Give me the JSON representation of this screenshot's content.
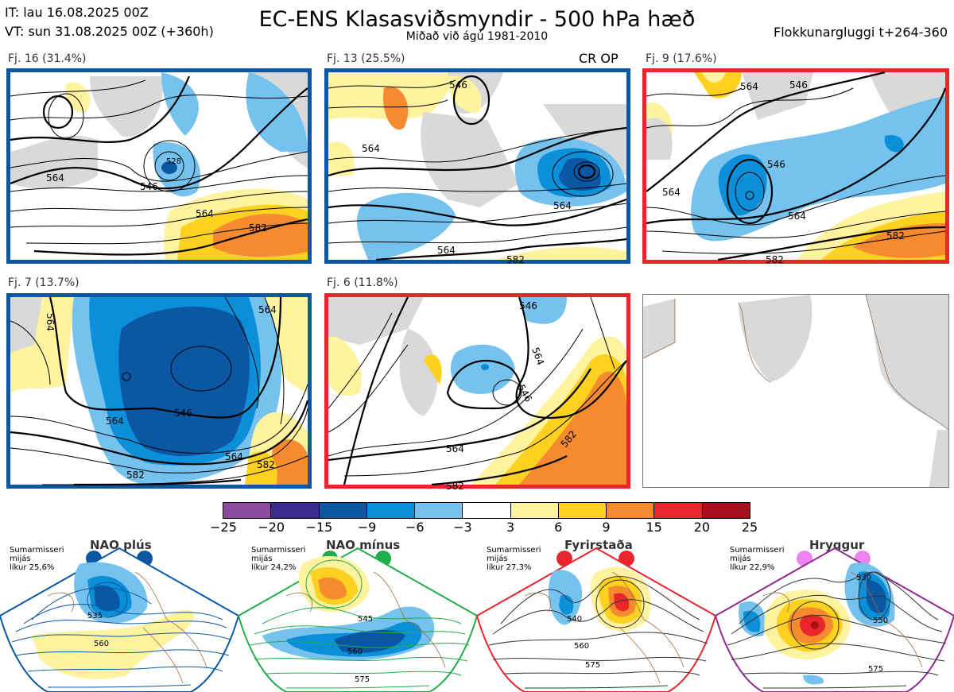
{
  "header": {
    "it_line": "IT: lau 16.08.2025 00Z",
    "vt_line": "VT: sun 31.08.2025 00Z  (+360h)",
    "title": "EC-ENS Klasasviðsmyndir - 500 hPa hæð",
    "subtitle": "Miðað við ágú 1981-2010",
    "window": "Flokkunargluggi t+264-360"
  },
  "panels": [
    {
      "label": "Fj. 16 (31.4%)",
      "border_color": "#0b57a4",
      "tag": "",
      "contours": [
        "564",
        "546",
        "528",
        "564",
        "582"
      ]
    },
    {
      "label": "Fj. 13 (25.5%)",
      "border_color": "#0b57a4",
      "tag": "CR OP",
      "contours": [
        "546",
        "564",
        "564",
        "564",
        "582"
      ]
    },
    {
      "label": "Fj. 9 (17.6%)",
      "border_color": "#e8262b",
      "tag": "",
      "contours": [
        "564",
        "546",
        "564",
        "546",
        "564",
        "582",
        "582"
      ]
    },
    {
      "label": "Fj. 7 (13.7%)",
      "border_color": "#0b57a4",
      "tag": "",
      "contours": [
        "564",
        "564",
        "546",
        "564",
        "564",
        "582",
        "582"
      ]
    },
    {
      "label": "Fj. 6 (11.8%)",
      "border_color": "#e8262b",
      "tag": "",
      "contours": [
        "546",
        "564",
        "546",
        "564",
        "582",
        "582"
      ]
    }
  ],
  "colorbar": {
    "ticks": [
      "−25",
      "−20",
      "−15",
      "−9",
      "−6",
      "−3",
      "3",
      "6",
      "9",
      "15",
      "20",
      "25"
    ],
    "colors": [
      "#8e4a9f",
      "#3a2d8f",
      "#0b57a4",
      "#0c8fd9",
      "#76c2ee",
      "#ffffff",
      "#fff3a0",
      "#fcd11f",
      "#f58a2f",
      "#e8262b",
      "#a5101c"
    ]
  },
  "regimes": [
    {
      "title": "NAO plús",
      "text": [
        "Sumarmisseri",
        "mijás",
        "líkur 25,6%"
      ],
      "dot_color": "#0b57a4",
      "outline": "#0b57a4",
      "contours": [
        "535",
        "560"
      ]
    },
    {
      "title": "NAO mínus",
      "text": [
        "Sumarmisseri",
        "mijás",
        "líkur 24,2%"
      ],
      "dot_color": "#21ad4a",
      "outline": "#21ad4a",
      "contours": [
        "545",
        "560",
        "575"
      ]
    },
    {
      "title": "Fyrirstaða",
      "text": [
        "Sumarmisseri",
        "mijás",
        "líkur 27,3%"
      ],
      "dot_color": "#e8262b",
      "outline": "#e8262b",
      "contours": [
        "540",
        "560",
        "575"
      ]
    },
    {
      "title": "Hryggur",
      "text": [
        "Sumarmisseri",
        "mijás",
        "líkur 22,9%"
      ],
      "dot_color": "#ee82ee",
      "outline": "#8e2c8f",
      "contours": [
        "530",
        "550",
        "575"
      ]
    }
  ]
}
